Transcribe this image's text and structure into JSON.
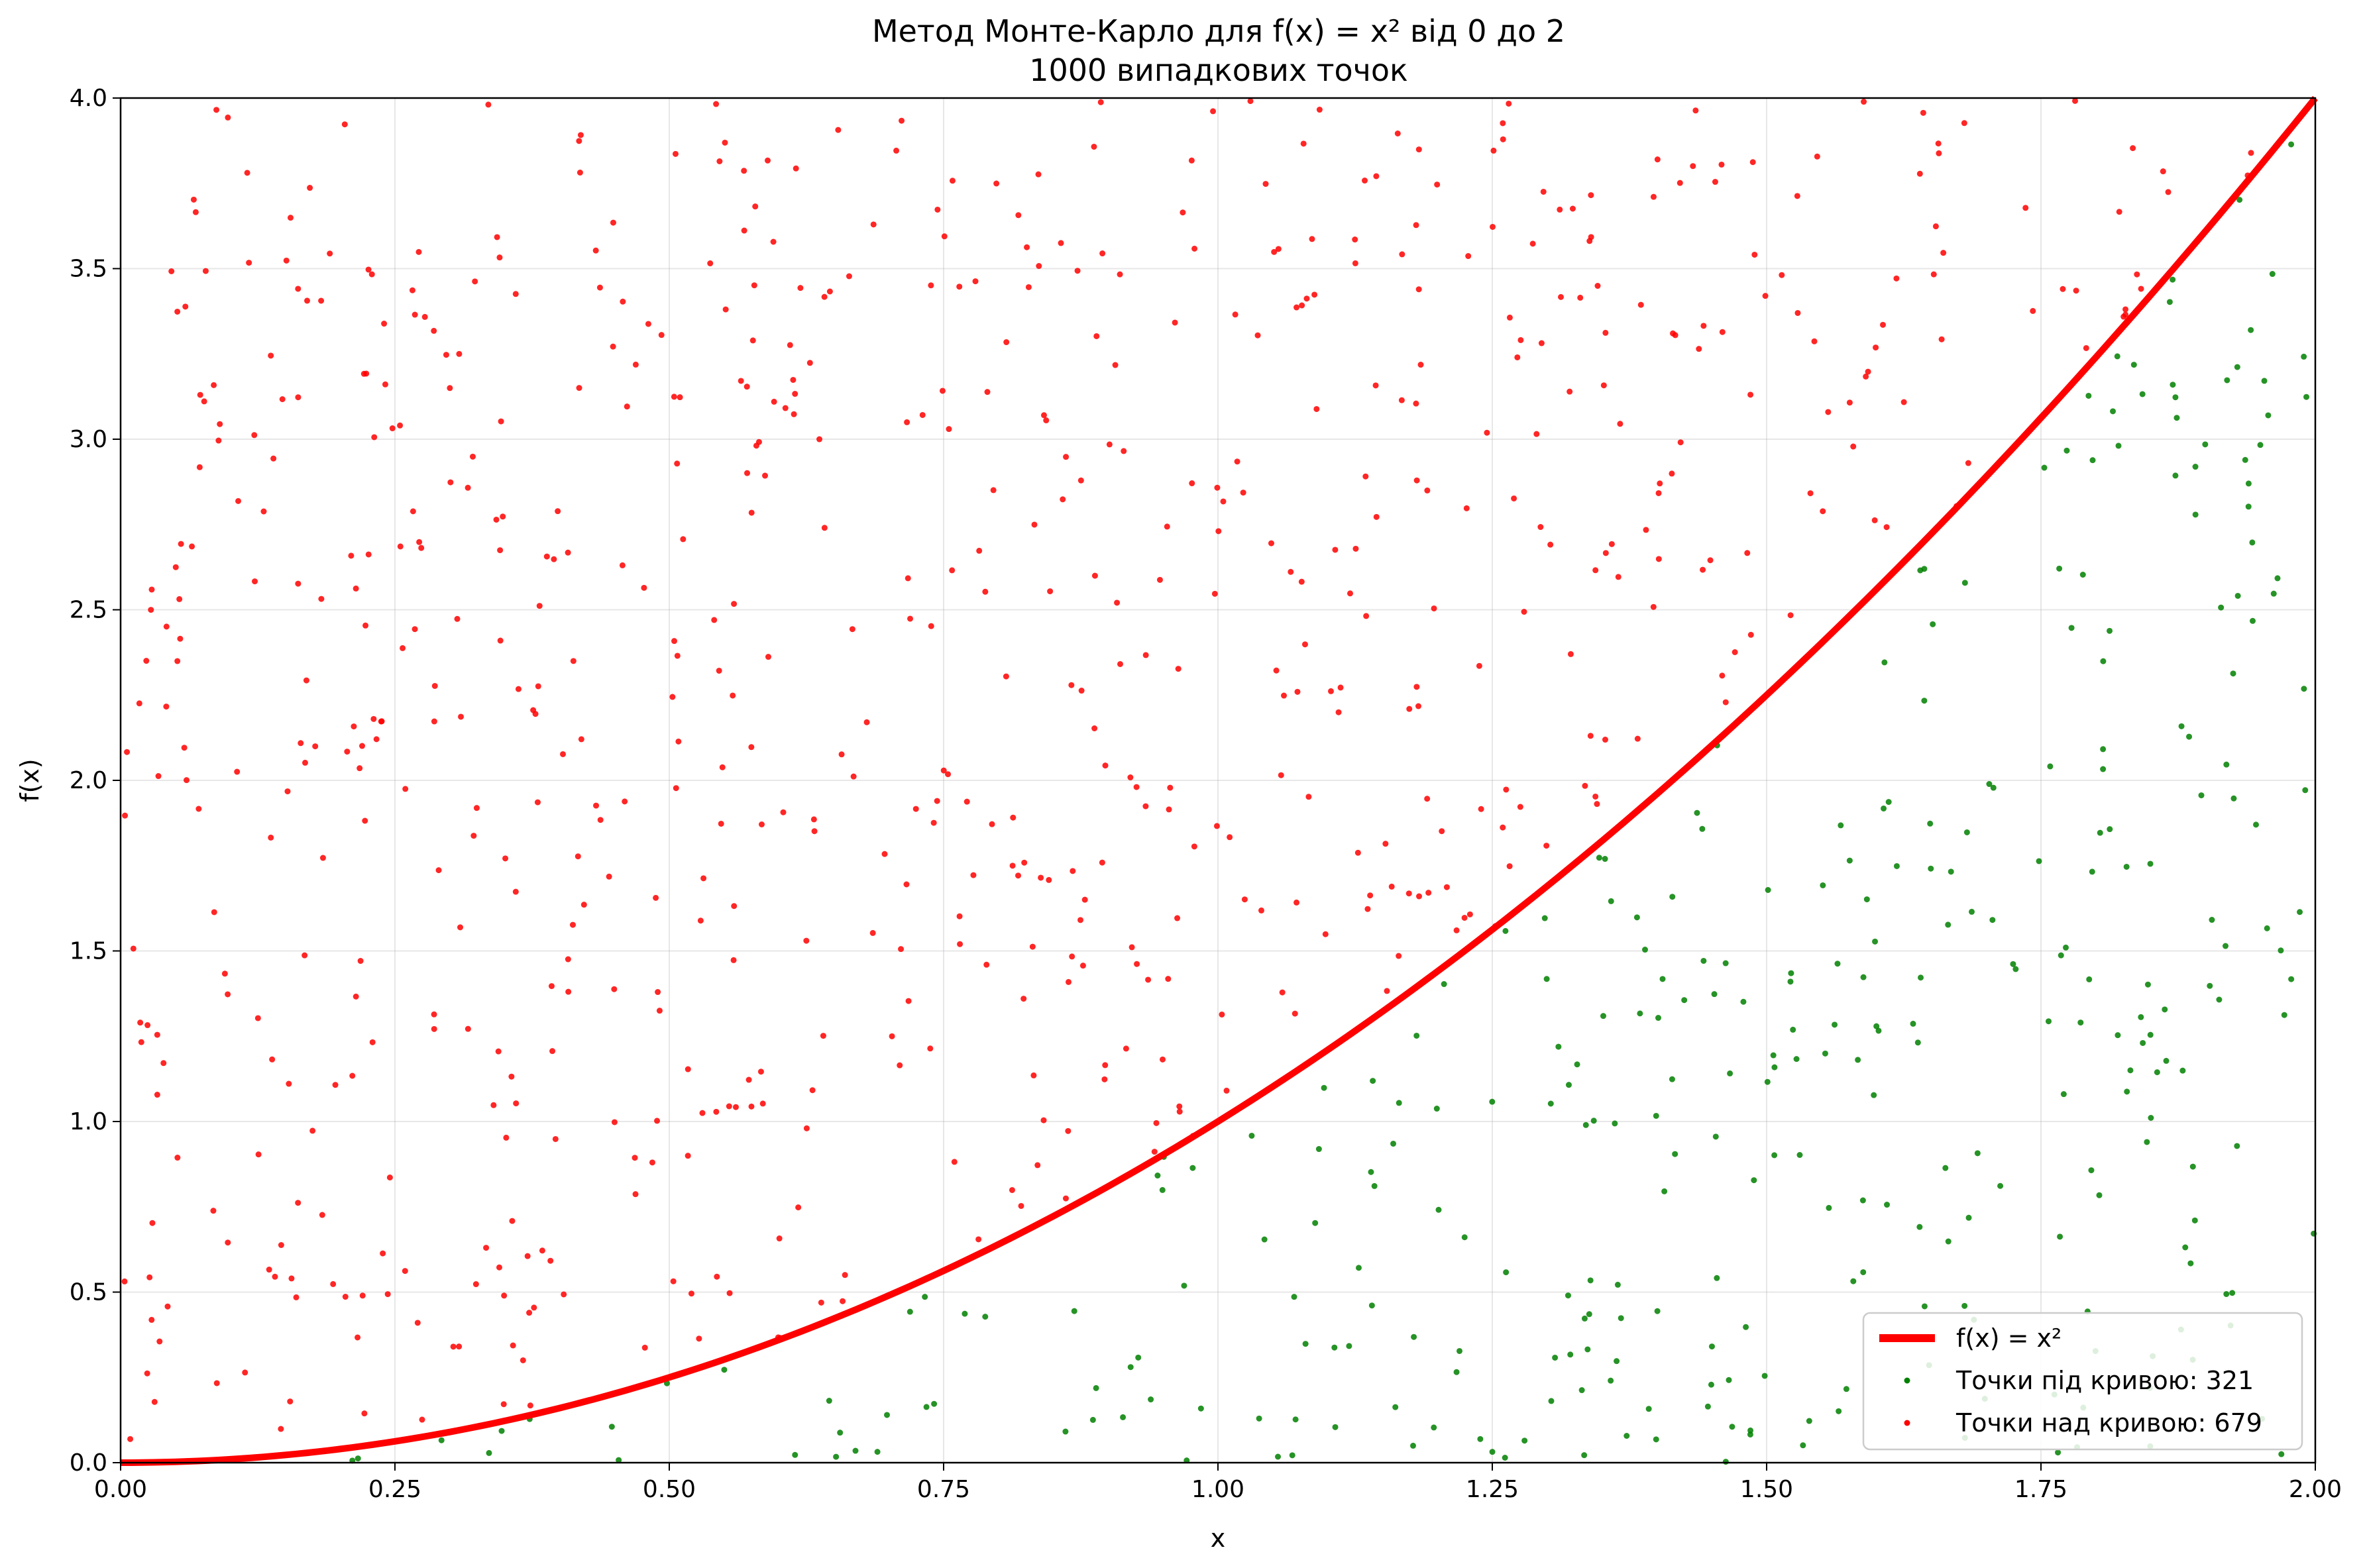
{
  "chart_data": {
    "type": "scatter",
    "title": "Метод Монте-Карло для f(x) = x² від 0 до 2",
    "subtitle": "1000 випадкових точок",
    "xlabel": "x",
    "ylabel": "f(x)",
    "xlim": [
      0,
      2
    ],
    "ylim": [
      0,
      4
    ],
    "x_ticks": [
      "0.00",
      "0.25",
      "0.50",
      "0.75",
      "1.00",
      "1.25",
      "1.50",
      "1.75",
      "2.00"
    ],
    "y_ticks": [
      "0.0",
      "0.5",
      "1.0",
      "1.5",
      "2.0",
      "2.5",
      "3.0",
      "3.5",
      "4.0"
    ],
    "grid": true,
    "legend_position": "lower-right",
    "total_points": 1000,
    "series": [
      {
        "name": "f(x) = x²",
        "kind": "line",
        "function": "x^2",
        "color": "#ff0000"
      },
      {
        "name": "Точки під кривою: 321",
        "kind": "scatter",
        "count": 321,
        "region": "below",
        "color": "#008000"
      },
      {
        "name": "Точки над кривою: 679",
        "kind": "scatter",
        "count": 679,
        "region": "above",
        "color": "#ff0000"
      }
    ]
  }
}
